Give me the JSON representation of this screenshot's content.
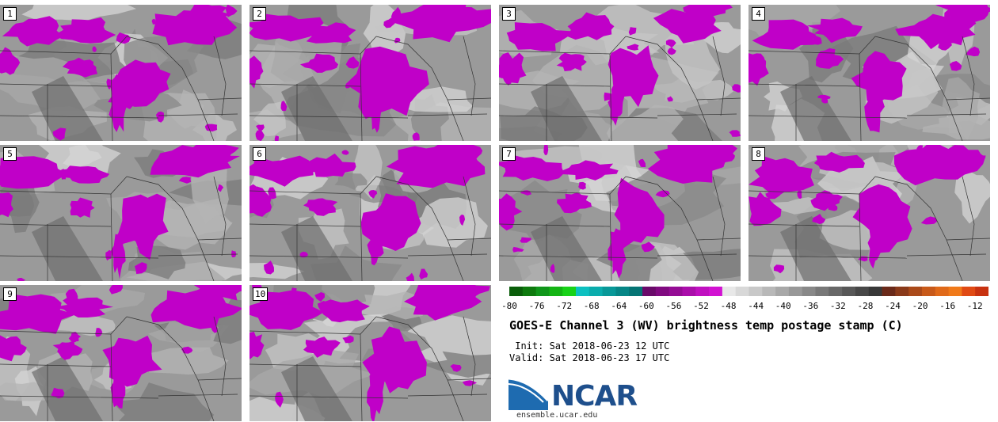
{
  "panels": [
    {
      "label": "1"
    },
    {
      "label": "2"
    },
    {
      "label": "3"
    },
    {
      "label": "4"
    },
    {
      "label": "5"
    },
    {
      "label": "6"
    },
    {
      "label": "7"
    },
    {
      "label": "8"
    },
    {
      "label": "9"
    },
    {
      "label": "10"
    }
  ],
  "colorbar": {
    "colors": [
      "#0a5e0a",
      "#0e7a0e",
      "#10961a",
      "#14b414",
      "#18d218",
      "#0cc0c0",
      "#0aacac",
      "#089898",
      "#068686",
      "#057474",
      "#6a0a6a",
      "#800a80",
      "#950c95",
      "#aa0eaa",
      "#c010c0",
      "#d212d2",
      "#e8e8e8",
      "#d8d8d8",
      "#c8c8c8",
      "#b8b8b8",
      "#a8a8a8",
      "#989898",
      "#888888",
      "#787878",
      "#686868",
      "#585858",
      "#484848",
      "#383838",
      "#6a2a1a",
      "#8a3a1a",
      "#aa4a1a",
      "#c85a1a",
      "#e06a1a",
      "#f07a1a",
      "#e04a14",
      "#c83210"
    ],
    "ticks": [
      "-80",
      "-76",
      "-72",
      "-68",
      "-64",
      "-60",
      "-56",
      "-52",
      "-48",
      "-44",
      "-40",
      "-36",
      "-32",
      "-28",
      "-24",
      "-20",
      "-16",
      "-12"
    ],
    "min": -80,
    "max": -10
  },
  "title": "GOES-E Channel 3 (WV) brightness temp postage stamp (C)",
  "init": " Init: Sat 2018-06-23 12 UTC",
  "valid": "Valid: Sat 2018-06-23 17 UTC",
  "logo": {
    "name": "NCAR",
    "url": "ensemble.ucar.edu",
    "color": "#1e4f8c"
  },
  "colors": {
    "wv_magenta": "#c000c8",
    "map_gray": "#9a9a9a"
  }
}
